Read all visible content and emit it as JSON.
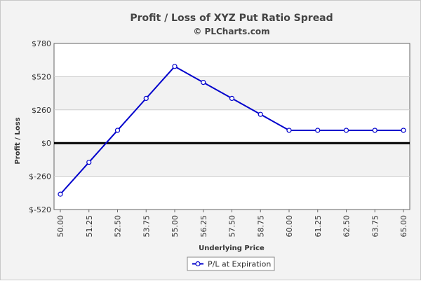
{
  "chart_data": {
    "type": "line",
    "title": "Profit / Loss of XYZ Put Ratio Spread",
    "subtitle": "© PLCharts.com",
    "xlabel": "Underlying Price",
    "ylabel": "Profit / Loss",
    "categories": [
      "50.00",
      "51.25",
      "52.50",
      "53.75",
      "55.00",
      "56.25",
      "57.50",
      "58.75",
      "60.00",
      "61.25",
      "62.50",
      "63.75",
      "65.00"
    ],
    "y_ticks": [
      780,
      520,
      260,
      0,
      -260,
      -520
    ],
    "y_tick_labels": [
      "$780",
      "$520",
      "$260",
      "$0",
      "$-260",
      "$-520"
    ],
    "ylim": [
      -520,
      780
    ],
    "grid": true,
    "legend_position": "bottom-center",
    "series": [
      {
        "name": "P/L at Expiration",
        "color": "#0000cc",
        "values": [
          -400,
          -150,
          100,
          350,
          600,
          475,
          350,
          225,
          100,
          100,
          100,
          100,
          100
        ]
      }
    ]
  }
}
